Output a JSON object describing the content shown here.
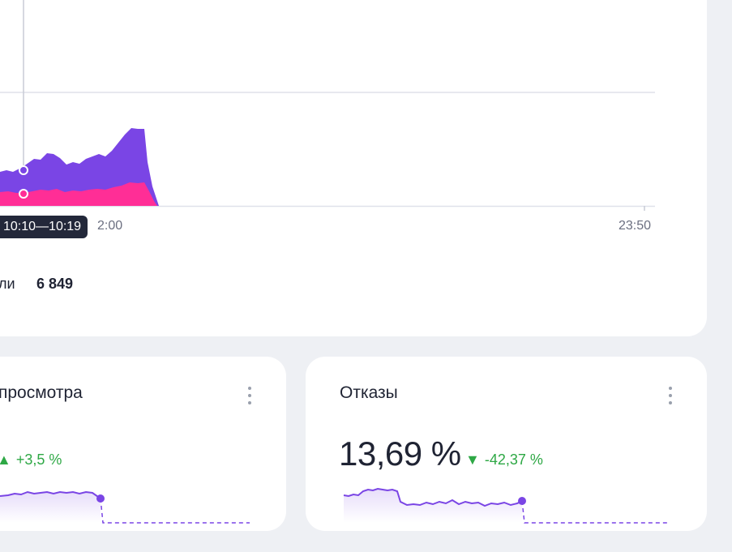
{
  "colors": {
    "series_primary": "#7a45e5",
    "series_secondary": "#ff2e96",
    "gridline": "#dfe1ea",
    "positive_delta": "#2ea845",
    "tooltip_bg": "#23283a"
  },
  "main_chart": {
    "tooltip_label": "10:10—10:19",
    "x_tick_mid": "2:00",
    "x_tick_end": "23:50",
    "legend_label_partial": "ли",
    "legend_value": "6 849"
  },
  "widgets": [
    {
      "title": "просмотра",
      "delta_arrow": "▲",
      "delta": "+3,5 %",
      "menu_icon": "kebab-icon"
    },
    {
      "title": "Отказы",
      "value": "13,69 %",
      "delta_arrow": "▼",
      "delta": "-42,37 %",
      "menu_icon": "kebab-icon"
    }
  ]
}
